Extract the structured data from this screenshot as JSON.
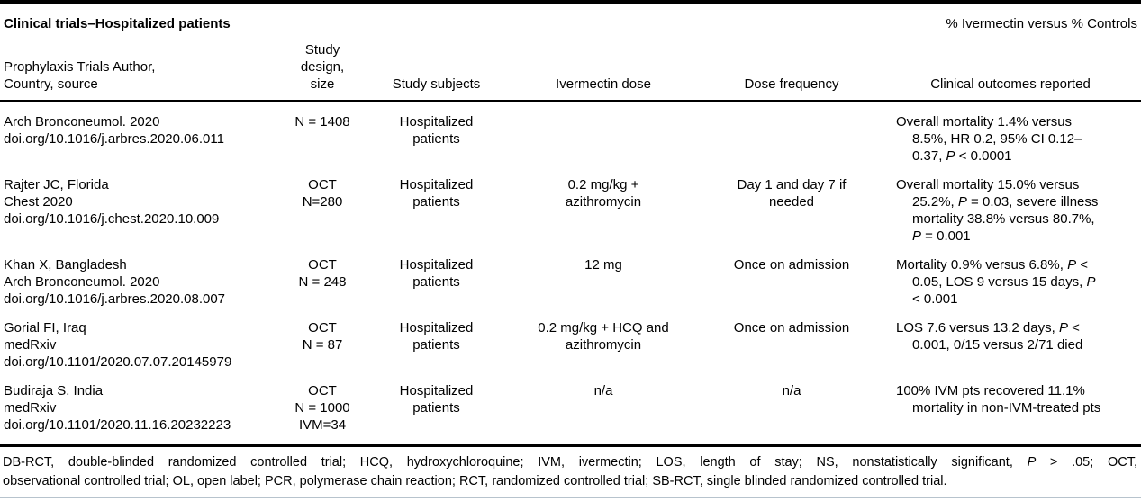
{
  "caption": {
    "title": "Clinical trials–Hospitalized patients",
    "right_note": "% Ivermectin versus % Controls"
  },
  "columns": {
    "author": "Prophylaxis Trials Author,\nCountry, source",
    "design": "Study\ndesign,\nsize",
    "subjects": "Study subjects",
    "dose": "Ivermectin dose",
    "frequency": "Dose frequency",
    "outcomes": "Clinical outcomes reported"
  },
  "rows": [
    {
      "source": "Arch Bronconeumol. 2020\ndoi.org/10.1016/j.arbres.2020.06.011",
      "design": "N = 1408",
      "subjects": "Hospitalized patients",
      "dose": "",
      "frequency": "",
      "outcomes": "Overall mortality 1.4% versus 8.5%, HR 0.2, 95% CI 0.12–0.37, P < 0.0001"
    },
    {
      "source": "Rajter JC, Florida\nChest 2020\ndoi.org/10.1016/j.chest.2020.10.009",
      "design": "OCT\nN=280",
      "subjects": "Hospitalized patients",
      "dose": "0.2 mg/kg + azithromycin",
      "frequency": "Day 1 and day 7 if needed",
      "outcomes": "Overall mortality 15.0% versus 25.2%, P = 0.03, severe illness mortality 38.8% versus 80.7%, P = 0.001"
    },
    {
      "source": "Khan X, Bangladesh\nArch Bronconeumol. 2020\ndoi.org/10.1016/j.arbres.2020.08.007",
      "design": "OCT\nN = 248",
      "subjects": "Hospitalized patients",
      "dose": "12 mg",
      "frequency": "Once on admission",
      "outcomes": "Mortality 0.9% versus 6.8%, P < 0.05, LOS 9 versus 15 days, P < 0.001"
    },
    {
      "source": "Gorial FI, Iraq\nmedRxiv\ndoi.org/10.1101/2020.07.07.20145979",
      "design": "OCT\nN = 87",
      "subjects": "Hospitalized patients",
      "dose": "0.2 mg/kg + HCQ and azithromycin",
      "frequency": "Once on admission",
      "outcomes": "LOS 7.6 versus 13.2 days, P < 0.001, 0/15 versus 2/71 died"
    },
    {
      "source": "Budiraja S. India\nmedRxiv\ndoi.org/10.1101/2020.11.16.20232223",
      "design": "OCT\nN = 1000\nIVM=34",
      "subjects": "Hospitalized patients",
      "dose": "n/a",
      "frequency": "n/a",
      "outcomes": "100% IVM pts recovered 11.1% mortality in non-IVM-treated pts"
    }
  ],
  "footnote": {
    "line1": "DB-RCT, double-blinded randomized controlled trial; HCQ, hydroxychloroquine; IVM, ivermectin; LOS, length of stay; NS, nonstatistically significant, P > .05; OCT,",
    "line2": "observational controlled trial; OL, open label; PCR, polymerase chain reaction; RCT, randomized controlled trial; SB-RCT, single blinded randomized controlled trial."
  },
  "colors": {
    "text": "#000000",
    "rule": "#000000",
    "page_edge": "#b7c3cd"
  }
}
